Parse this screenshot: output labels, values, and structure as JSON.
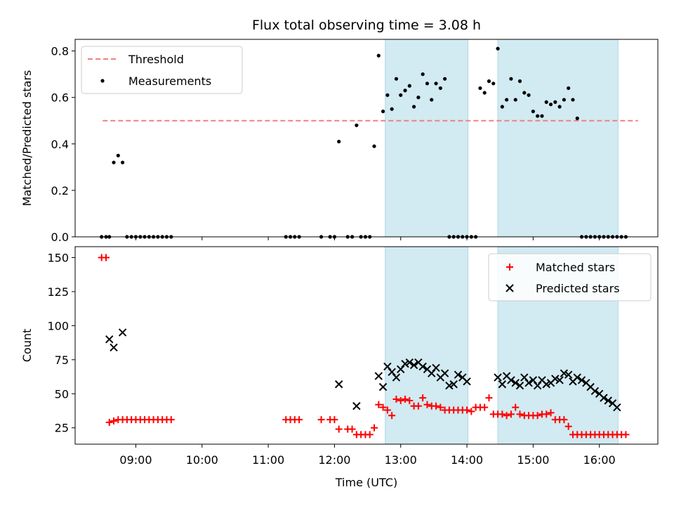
{
  "title": "Flux total observing time = 3.08 h",
  "colors": {
    "threshold": "#f08080",
    "measurement": "#000000",
    "matched": "#ff0000",
    "predicted": "#000000",
    "shade": "#add8e6"
  },
  "chart_data": [
    {
      "type": "scatter",
      "ylabel": "Matched/Predicted stars",
      "ylim": [
        0,
        0.85
      ],
      "yticks": [
        0.0,
        0.2,
        0.4,
        0.6,
        0.8
      ],
      "ytick_labels": [
        "0.0",
        "0.2",
        "0.4",
        "0.6",
        "0.8"
      ],
      "legend": [
        "Threshold",
        "Measurements"
      ],
      "legend_position": "upper left",
      "threshold": {
        "name": "Threshold",
        "y": 0.5,
        "x_start": "08:30",
        "x_end": "16:35"
      },
      "shaded_intervals": [
        [
          "12:46",
          "14:01"
        ],
        [
          "14:28",
          "16:17"
        ]
      ],
      "series": [
        {
          "name": "Measurements",
          "x": [
            "08:29",
            "08:33",
            "08:36",
            "08:40",
            "08:44",
            "08:48",
            "08:52",
            "08:56",
            "09:00",
            "09:04",
            "09:08",
            "09:12",
            "09:16",
            "09:20",
            "09:24",
            "09:28",
            "09:32",
            "11:16",
            "11:20",
            "11:24",
            "11:28",
            "11:48",
            "11:56",
            "12:00",
            "12:04",
            "12:12",
            "12:16",
            "12:20",
            "12:24",
            "12:28",
            "12:32",
            "12:36",
            "12:40",
            "12:44",
            "12:48",
            "12:52",
            "12:56",
            "13:00",
            "13:04",
            "13:08",
            "13:12",
            "13:16",
            "13:20",
            "13:24",
            "13:28",
            "13:32",
            "13:36",
            "13:40",
            "13:44",
            "13:48",
            "13:52",
            "13:56",
            "14:00",
            "14:04",
            "14:08",
            "14:12",
            "14:16",
            "14:20",
            "14:24",
            "14:28",
            "14:32",
            "14:36",
            "14:40",
            "14:44",
            "14:48",
            "14:52",
            "14:56",
            "15:00",
            "15:04",
            "15:08",
            "15:12",
            "15:16",
            "15:20",
            "15:24",
            "15:28",
            "15:32",
            "15:36",
            "15:40",
            "15:44",
            "15:48",
            "15:52",
            "15:56",
            "16:00",
            "16:04",
            "16:08",
            "16:12",
            "16:16",
            "16:20",
            "16:24"
          ],
          "y": [
            0,
            0,
            0,
            0.32,
            0.35,
            0.32,
            0,
            0,
            0,
            0,
            0,
            0,
            0,
            0,
            0,
            0,
            0,
            0,
            0,
            0,
            0,
            0,
            0,
            0,
            0.41,
            0,
            0,
            0.48,
            0,
            0,
            0,
            0.39,
            0.78,
            0.54,
            0.61,
            0.55,
            0.68,
            0.61,
            0.63,
            0.65,
            0.56,
            0.6,
            0.7,
            0.66,
            0.59,
            0.66,
            0.64,
            0.68,
            0,
            0,
            0,
            0,
            0,
            0,
            0,
            0.64,
            0.62,
            0.67,
            0.66,
            0.81,
            0.56,
            0.59,
            0.68,
            0.59,
            0.67,
            0.62,
            0.61,
            0.54,
            0.52,
            0.52,
            0.58,
            0.57,
            0.58,
            0.56,
            0.59,
            0.64,
            0.59,
            0.51,
            0,
            0,
            0,
            0,
            0,
            0,
            0,
            0,
            0,
            0,
            0
          ]
        }
      ]
    },
    {
      "type": "scatter",
      "xlabel": "Time (UTC)",
      "ylabel": "Count",
      "ylim": [
        13,
        158
      ],
      "yticks": [
        25,
        50,
        75,
        100,
        125,
        150
      ],
      "ytick_labels": [
        "25",
        "50",
        "75",
        "100",
        "125",
        "150"
      ],
      "xlim": [
        "08:05",
        "16:53"
      ],
      "xticks": [
        "09:00",
        "10:00",
        "11:00",
        "12:00",
        "13:00",
        "14:00",
        "15:00",
        "16:00"
      ],
      "xtick_labels": [
        "09:00",
        "10:00",
        "11:00",
        "12:00",
        "13:00",
        "14:00",
        "15:00",
        "16:00"
      ],
      "legend": [
        "Matched stars",
        "Predicted stars"
      ],
      "legend_position": "upper right",
      "shaded_intervals": [
        [
          "12:46",
          "14:01"
        ],
        [
          "14:28",
          "16:17"
        ]
      ],
      "series": [
        {
          "name": "Matched stars",
          "x": [
            "08:29",
            "08:33",
            "08:36",
            "08:40",
            "08:44",
            "08:48",
            "08:52",
            "08:56",
            "09:00",
            "09:04",
            "09:08",
            "09:12",
            "09:16",
            "09:20",
            "09:24",
            "09:28",
            "09:32",
            "11:16",
            "11:20",
            "11:24",
            "11:28",
            "11:48",
            "11:56",
            "12:00",
            "12:04",
            "12:12",
            "12:16",
            "12:20",
            "12:24",
            "12:28",
            "12:32",
            "12:36",
            "12:40",
            "12:44",
            "12:48",
            "12:52",
            "12:56",
            "13:00",
            "13:04",
            "13:08",
            "13:12",
            "13:16",
            "13:20",
            "13:24",
            "13:28",
            "13:32",
            "13:36",
            "13:40",
            "13:44",
            "13:48",
            "13:52",
            "13:56",
            "14:00",
            "14:04",
            "14:08",
            "14:12",
            "14:16",
            "14:20",
            "14:24",
            "14:28",
            "14:32",
            "14:36",
            "14:40",
            "14:44",
            "14:48",
            "14:52",
            "14:56",
            "15:00",
            "15:04",
            "15:08",
            "15:12",
            "15:16",
            "15:20",
            "15:24",
            "15:28",
            "15:32",
            "15:36",
            "15:40",
            "15:44",
            "15:48",
            "15:52",
            "15:56",
            "16:00",
            "16:04",
            "16:08",
            "16:12",
            "16:16",
            "16:20",
            "16:24"
          ],
          "y": [
            150,
            150,
            29,
            30,
            31,
            31,
            31,
            31,
            31,
            31,
            31,
            31,
            31,
            31,
            31,
            31,
            31,
            31,
            31,
            31,
            31,
            31,
            31,
            31,
            24,
            24,
            24,
            20,
            20,
            20,
            20,
            25,
            42,
            40,
            38,
            34,
            46,
            45,
            46,
            45,
            41,
            41,
            47,
            42,
            41,
            41,
            40,
            38,
            38,
            38,
            38,
            38,
            38,
            37,
            40,
            40,
            40,
            47,
            35,
            35,
            35,
            34,
            35,
            40,
            35,
            34,
            34,
            34,
            34,
            35,
            35,
            36,
            31,
            31,
            31,
            26,
            20,
            20,
            20,
            20,
            20,
            20,
            20,
            20,
            20,
            20,
            20,
            20,
            20
          ]
        },
        {
          "name": "Predicted stars",
          "x": [
            "08:36",
            "08:40",
            "08:48",
            "12:04",
            "12:20",
            "12:40",
            "12:44",
            "12:48",
            "12:52",
            "12:56",
            "13:00",
            "13:04",
            "13:08",
            "13:12",
            "13:16",
            "13:20",
            "13:24",
            "13:28",
            "13:32",
            "13:36",
            "13:40",
            "13:44",
            "13:48",
            "13:52",
            "13:56",
            "14:00",
            "14:28",
            "14:32",
            "14:36",
            "14:40",
            "14:44",
            "14:48",
            "14:52",
            "14:56",
            "15:00",
            "15:04",
            "15:08",
            "15:12",
            "15:16",
            "15:20",
            "15:24",
            "15:28",
            "15:32",
            "15:36",
            "15:40",
            "15:44",
            "15:48",
            "15:52",
            "15:56",
            "16:00",
            "16:04",
            "16:08",
            "16:12",
            "16:16"
          ],
          "y": [
            90,
            84,
            95,
            57,
            41,
            63,
            55,
            70,
            66,
            62,
            68,
            72,
            73,
            71,
            73,
            70,
            68,
            65,
            69,
            62,
            65,
            56,
            57,
            64,
            62,
            59,
            62,
            57,
            63,
            60,
            58,
            56,
            62,
            58,
            60,
            56,
            60,
            57,
            58,
            61,
            60,
            65,
            64,
            59,
            62,
            60,
            58,
            55,
            52,
            50,
            47,
            45,
            43,
            40
          ]
        }
      ]
    }
  ]
}
